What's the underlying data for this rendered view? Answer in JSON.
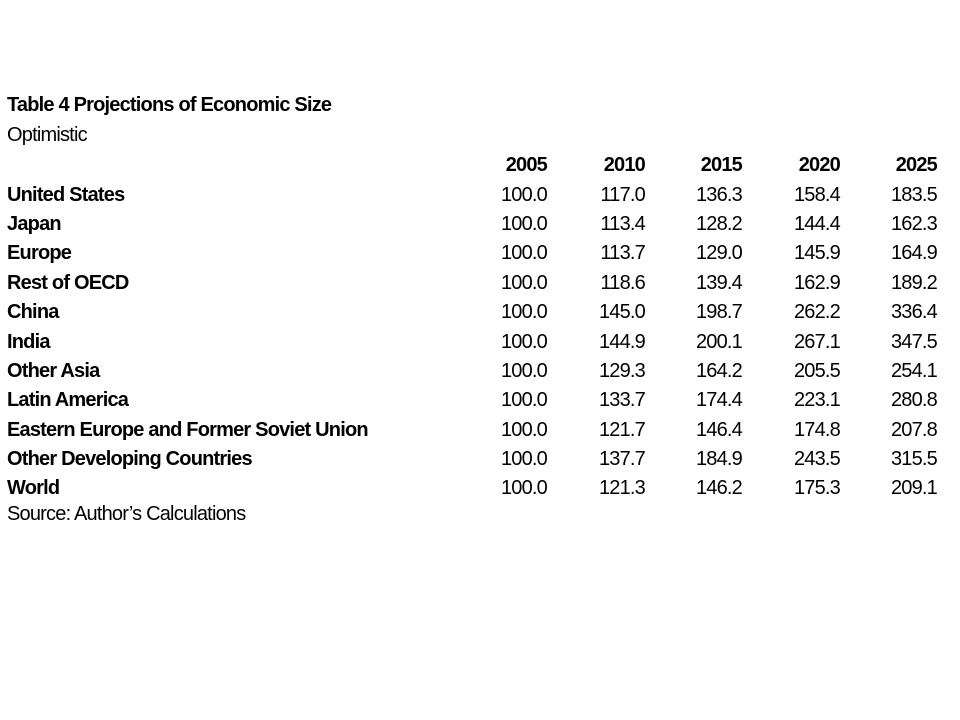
{
  "document": {
    "title": "Table 4 Projections of Economic Size",
    "subtitle": "Optimistic",
    "source": "Source: Author’s Calculations"
  },
  "table": {
    "headers": [
      "2005",
      "2010",
      "2015",
      "2020",
      "2025"
    ],
    "rows": [
      {
        "label": "United States",
        "values": [
          "100.0",
          "117.0",
          "136.3",
          "158.4",
          "183.5"
        ]
      },
      {
        "label": "Japan",
        "values": [
          "100.0",
          "113.4",
          "128.2",
          "144.4",
          "162.3"
        ]
      },
      {
        "label": "Europe",
        "values": [
          "100.0",
          "113.7",
          "129.0",
          "145.9",
          "164.9"
        ]
      },
      {
        "label": "Rest of OECD",
        "values": [
          "100.0",
          "118.6",
          "139.4",
          "162.9",
          "189.2"
        ]
      },
      {
        "label": "China",
        "values": [
          "100.0",
          "145.0",
          "198.7",
          "262.2",
          "336.4"
        ]
      },
      {
        "label": "India",
        "values": [
          "100.0",
          "144.9",
          "200.1",
          "267.1",
          "347.5"
        ]
      },
      {
        "label": "Other Asia",
        "values": [
          "100.0",
          "129.3",
          "164.2",
          "205.5",
          "254.1"
        ]
      },
      {
        "label": "Latin America",
        "values": [
          "100.0",
          "133.7",
          "174.4",
          "223.1",
          "280.8"
        ]
      },
      {
        "label": "Eastern Europe and Former Soviet Union",
        "values": [
          "100.0",
          "121.7",
          "146.4",
          "174.8",
          "207.8"
        ]
      },
      {
        "label": "Other Developing Countries",
        "values": [
          "100.0",
          "137.7",
          "184.9",
          "243.5",
          "315.5"
        ]
      },
      {
        "label": "World",
        "values": [
          "100.0",
          "121.3",
          "146.2",
          "175.3",
          "209.1"
        ]
      }
    ]
  }
}
